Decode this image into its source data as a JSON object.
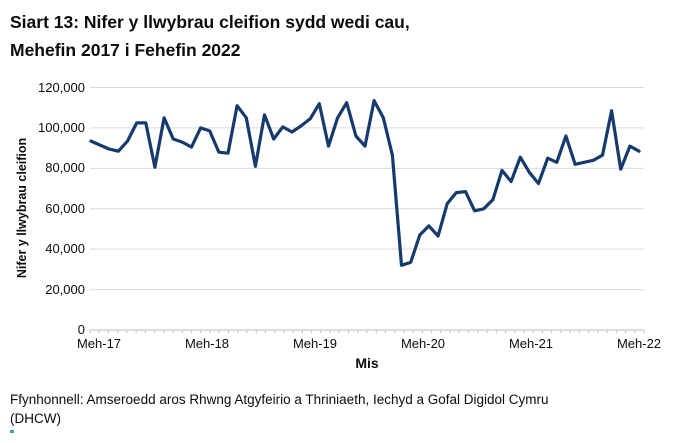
{
  "header": {
    "title_line1": "Siart 13: Nifer y llwybrau cleifion sydd wedi cau,",
    "title_line2": "Mehefin 2017 i Fehefin 2022"
  },
  "footer": {
    "line1": "Ffynhonnell: Amseroedd aros Rhwng Atgyfeirio a Thriniaeth, Iechyd a Gofal Digidol Cymru",
    "line2": "(DHCW)"
  },
  "chart_data": {
    "type": "line",
    "title": "Siart 13: Nifer y llwybrau cleifion sydd wedi cau, Mehefin 2017 i Fehefin 2022",
    "xlabel": "Mis",
    "ylabel": "Nifer y llwybrau cleifion",
    "x_monthly_from": "2017-06",
    "x_monthly_to": "2022-06",
    "x_tick_labels": [
      "Meh-17",
      "Meh-18",
      "Meh-19",
      "Meh-20",
      "Meh-21",
      "Meh-22"
    ],
    "y_tick_labels": [
      "0",
      "20,000",
      "40,000",
      "60,000",
      "80,000",
      "100,000",
      "120,000"
    ],
    "ylim": [
      0,
      120000
    ],
    "grid": "horizontal",
    "legend": "none",
    "line_color": "#163a6c",
    "gridline_color": "#d9d9d9",
    "axis_color": "#bfbfbf",
    "series": [
      {
        "name": "Nifer y llwybrau cleifion",
        "values": [
          93500,
          91500,
          89500,
          88500,
          93500,
          102500,
          102500,
          80500,
          105000,
          94500,
          93000,
          90500,
          100000,
          98500,
          88000,
          87500,
          111000,
          105000,
          81000,
          106500,
          94500,
          100500,
          98000,
          101000,
          104500,
          112000,
          91000,
          105000,
          112500,
          96000,
          91000,
          113500,
          105000,
          86500,
          32000,
          33500,
          47000,
          51500,
          46500,
          62500,
          68000,
          68500,
          59000,
          60000,
          64500,
          79000,
          73500,
          85500,
          78000,
          72500,
          85000,
          83000,
          96000,
          82000,
          83000,
          84000,
          86500,
          108500,
          79500,
          91000,
          88500
        ]
      }
    ]
  }
}
